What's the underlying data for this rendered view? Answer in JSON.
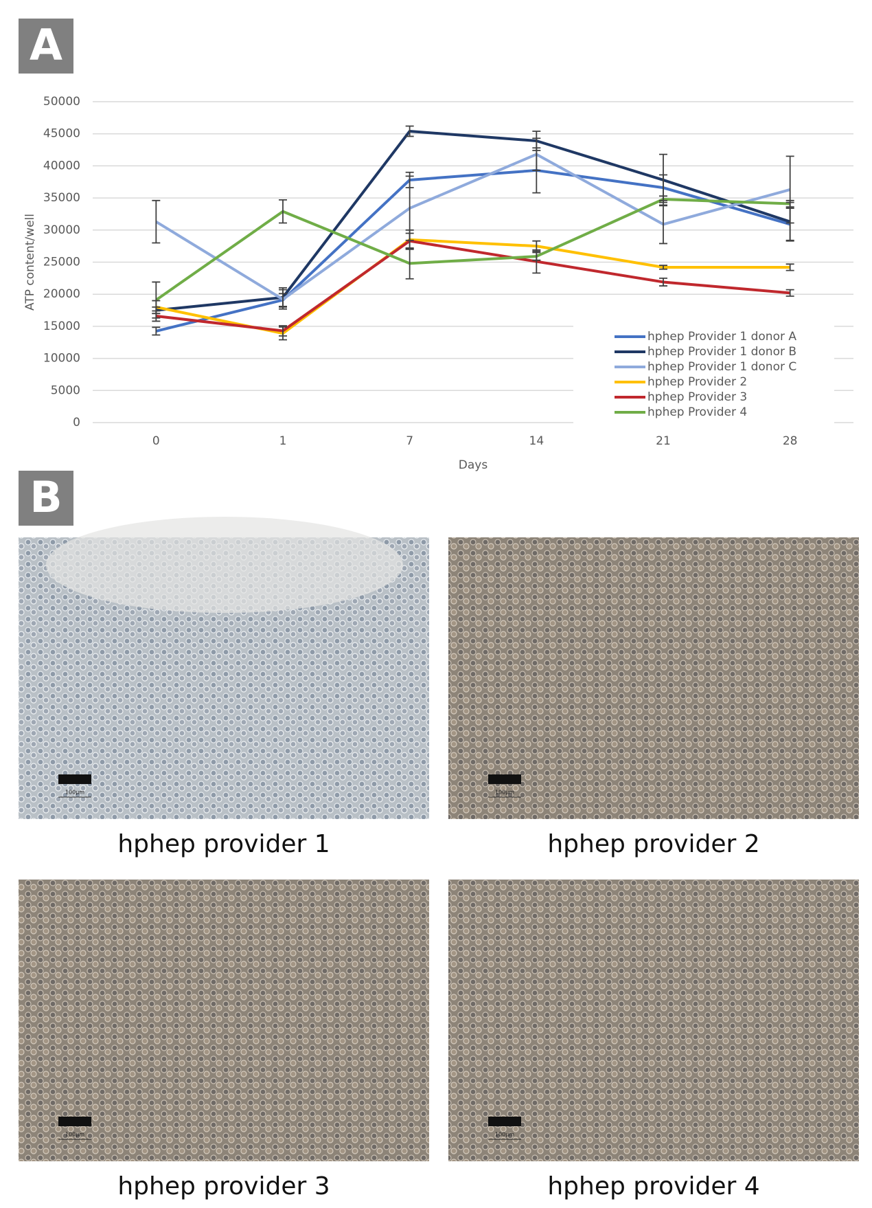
{
  "panel_a_label": "A",
  "chart_data": {
    "type": "line",
    "y_label": "ATP content/well",
    "x_label": "Days",
    "categories": [
      "0",
      "1",
      "7",
      "14",
      "21",
      "28"
    ],
    "ylim": [
      0,
      50000
    ],
    "yticks": [
      0,
      5000,
      10000,
      15000,
      20000,
      25000,
      30000,
      35000,
      40000,
      45000,
      50000
    ],
    "grid": true,
    "legend": "lower right",
    "series": [
      {
        "name": "hphep Provider 1 donor A",
        "color": "#4472c4",
        "values": [
          14250,
          19100,
          37800,
          39300,
          36600,
          30900
        ],
        "errors": [
          600,
          1000,
          1200,
          3500,
          2000,
          2500
        ]
      },
      {
        "name": "hphep Provider 1 donor B",
        "color": "#1f3864",
        "values": [
          17500,
          19500,
          45400,
          43900,
          37800,
          31300
        ],
        "errors": [
          500,
          1500,
          800,
          1500,
          4000,
          3000
        ]
      },
      {
        "name": "hphep Provider 1 donor C",
        "color": "#8faadc",
        "values": [
          31300,
          19200,
          33400,
          41800,
          30900,
          36300
        ],
        "errors": [
          3300,
          1500,
          5000,
          2500,
          3000,
          5200
        ]
      },
      {
        "name": "hphep Provider 2",
        "color": "#ffc000",
        "values": [
          18000,
          13900,
          28500,
          27500,
          24200,
          24200
        ],
        "errors": [
          1000,
          1000,
          1500,
          800,
          300,
          500
        ]
      },
      {
        "name": "hphep Provider 3",
        "color": "#c0282d",
        "values": [
          16600,
          14300,
          28300,
          25100,
          21900,
          20200
        ],
        "errors": [
          800,
          800,
          1200,
          1800,
          600,
          500
        ]
      },
      {
        "name": "hphep Provider 4",
        "color": "#70ad47",
        "values": [
          19100,
          32900,
          24800,
          25900,
          34800,
          34100
        ],
        "errors": [
          2800,
          1800,
          2400,
          600,
          500,
          500
        ]
      }
    ]
  },
  "panel_b_label": "B",
  "micrographs": [
    {
      "caption": "hphep provider 1",
      "scale_bar": "100µm"
    },
    {
      "caption": "hphep provider 2",
      "scale_bar": "100µm"
    },
    {
      "caption": "hphep provider 3",
      "scale_bar": "100µm"
    },
    {
      "caption": "hphep provider 4",
      "scale_bar": "100µm"
    }
  ]
}
